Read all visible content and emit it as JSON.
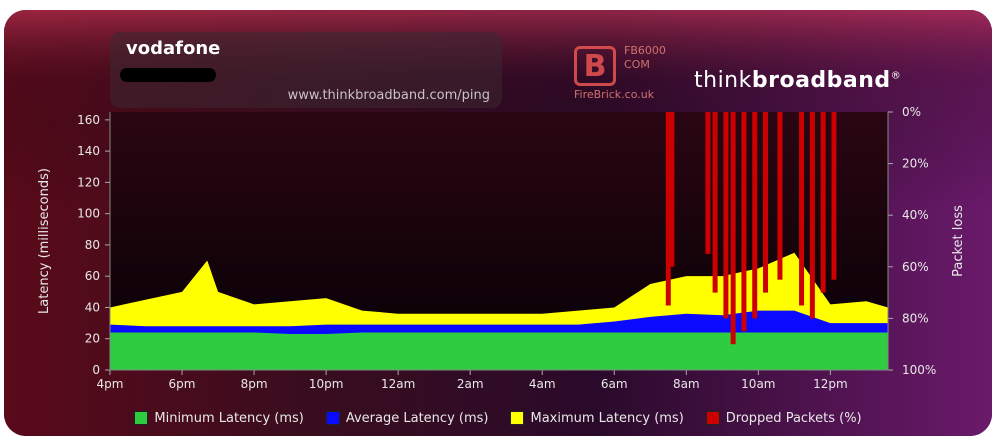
{
  "header": {
    "isp_name": "vodafone",
    "url": "www.thinkbroadband.com/ping"
  },
  "firebrick": {
    "model": "FB6000",
    "com": "COM",
    "site": "FireBrick.co.uk",
    "mark": "B"
  },
  "brand": {
    "prefix": "think",
    "suffix": "broadband",
    "reg": "®"
  },
  "colors": {
    "min": "#2ecc40",
    "avg": "#0a0aff",
    "max": "#ffff00",
    "dropped": "#cc0000"
  },
  "chart_data": {
    "type": "area",
    "ylabel": "Latency (milliseconds)",
    "y2label": "Packet loss",
    "ylim": [
      0,
      165
    ],
    "yticks": [
      0,
      20,
      40,
      60,
      80,
      100,
      120,
      140,
      160
    ],
    "y2ticks": [
      "0%",
      "20%",
      "40%",
      "60%",
      "80%",
      "100%"
    ],
    "xticks": [
      "4pm",
      "6pm",
      "8pm",
      "10pm",
      "12am",
      "2am",
      "4am",
      "6am",
      "8am",
      "10am",
      "12pm"
    ],
    "xrange_hours": [
      0,
      21.6
    ],
    "series": [
      {
        "name": "Minimum Latency (ms)",
        "key": "min",
        "values_by_hour": [
          [
            0,
            24
          ],
          [
            1,
            24
          ],
          [
            2,
            24
          ],
          [
            3,
            24
          ],
          [
            4,
            24
          ],
          [
            5,
            23
          ],
          [
            6,
            23
          ],
          [
            7,
            24
          ],
          [
            8,
            24
          ],
          [
            9,
            24
          ],
          [
            10,
            24
          ],
          [
            11,
            24
          ],
          [
            12,
            24
          ],
          [
            13,
            24
          ],
          [
            14,
            24
          ],
          [
            15,
            24
          ],
          [
            16,
            24
          ],
          [
            17,
            24
          ],
          [
            18,
            24
          ],
          [
            19,
            24
          ],
          [
            20,
            24
          ],
          [
            21,
            24
          ],
          [
            21.6,
            24
          ]
        ]
      },
      {
        "name": "Average Latency (ms)",
        "key": "avg",
        "values_by_hour": [
          [
            0,
            29
          ],
          [
            1,
            28
          ],
          [
            2,
            28
          ],
          [
            3,
            28
          ],
          [
            4,
            28
          ],
          [
            5,
            28
          ],
          [
            6,
            29
          ],
          [
            7,
            29
          ],
          [
            8,
            29
          ],
          [
            9,
            29
          ],
          [
            10,
            29
          ],
          [
            11,
            29
          ],
          [
            12,
            29
          ],
          [
            13,
            29
          ],
          [
            14,
            31
          ],
          [
            15,
            34
          ],
          [
            16,
            36
          ],
          [
            17,
            35
          ],
          [
            18,
            38
          ],
          [
            19,
            38
          ],
          [
            20,
            30
          ],
          [
            21,
            30
          ],
          [
            21.6,
            30
          ]
        ]
      },
      {
        "name": "Maximum Latency (ms)",
        "key": "max",
        "values_by_hour": [
          [
            0,
            40
          ],
          [
            1,
            45
          ],
          [
            2,
            50
          ],
          [
            2.7,
            70
          ],
          [
            3,
            50
          ],
          [
            4,
            42
          ],
          [
            5,
            44
          ],
          [
            6,
            46
          ],
          [
            7,
            38
          ],
          [
            8,
            36
          ],
          [
            9,
            36
          ],
          [
            10,
            36
          ],
          [
            11,
            36
          ],
          [
            12,
            36
          ],
          [
            13,
            38
          ],
          [
            14,
            40
          ],
          [
            15,
            55
          ],
          [
            16,
            60
          ],
          [
            17,
            60
          ],
          [
            18,
            65
          ],
          [
            19,
            75
          ],
          [
            20,
            42
          ],
          [
            21,
            44
          ],
          [
            21.6,
            40
          ]
        ]
      }
    ],
    "dropped_packets_percent": [
      {
        "hour": 15.5,
        "percent": 75
      },
      {
        "hour": 15.6,
        "percent": 60
      },
      {
        "hour": 16.6,
        "percent": 55
      },
      {
        "hour": 16.8,
        "percent": 70
      },
      {
        "hour": 17.1,
        "percent": 80
      },
      {
        "hour": 17.3,
        "percent": 90
      },
      {
        "hour": 17.6,
        "percent": 85
      },
      {
        "hour": 17.9,
        "percent": 80
      },
      {
        "hour": 18.2,
        "percent": 70
      },
      {
        "hour": 18.6,
        "percent": 65
      },
      {
        "hour": 19.2,
        "percent": 75
      },
      {
        "hour": 19.5,
        "percent": 80
      },
      {
        "hour": 19.8,
        "percent": 70
      },
      {
        "hour": 20.1,
        "percent": 65
      }
    ],
    "legend": [
      {
        "label": "Minimum Latency (ms)",
        "key": "min"
      },
      {
        "label": "Average Latency (ms)",
        "key": "avg"
      },
      {
        "label": "Maximum Latency (ms)",
        "key": "max"
      },
      {
        "label": "Dropped Packets (%)",
        "key": "dropped"
      }
    ]
  }
}
